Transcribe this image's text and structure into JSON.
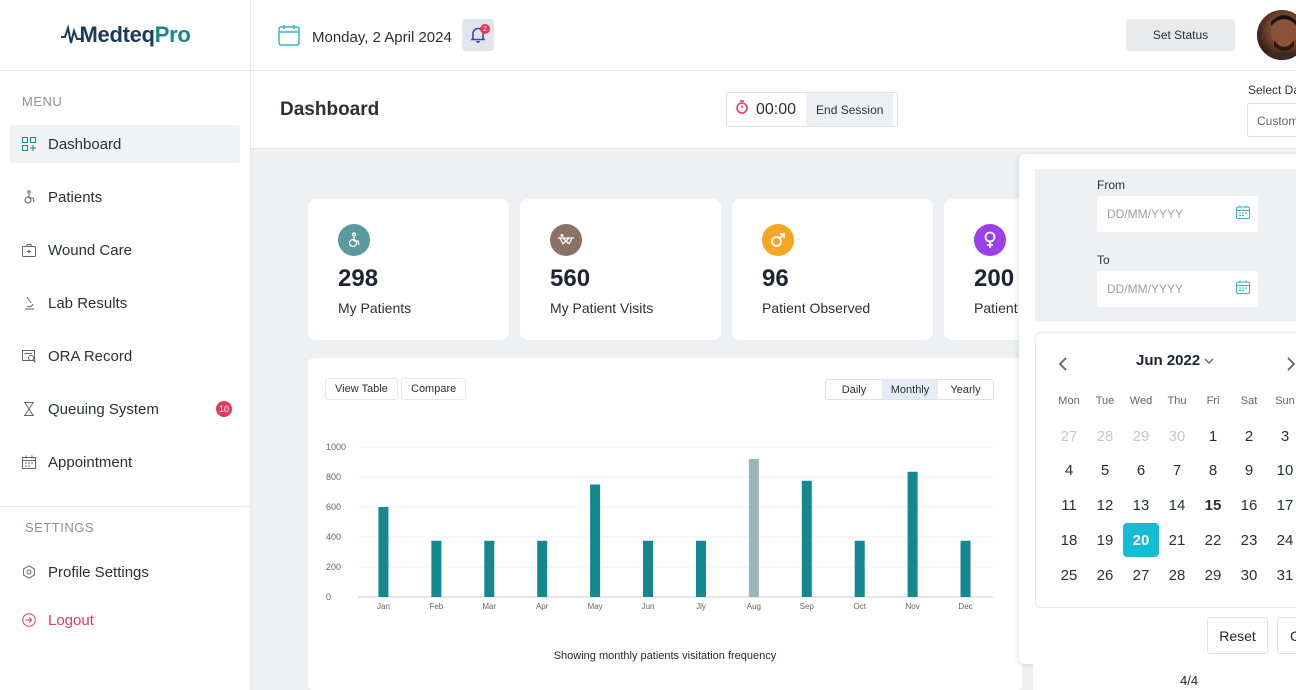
{
  "app": {
    "logo_main": "Medteq",
    "logo_accent": "Pro"
  },
  "sidebar": {
    "menu_title": "MENU",
    "items": [
      {
        "label": "Dashboard",
        "icon": "dashboard-icon",
        "active": true
      },
      {
        "label": "Patients",
        "icon": "wheelchair-icon"
      },
      {
        "label": "Wound Care",
        "icon": "first-aid-kit-icon"
      },
      {
        "label": "Lab Results",
        "icon": "microscope-icon"
      },
      {
        "label": "ORA Record",
        "icon": "record-search-icon"
      },
      {
        "label": "Queuing System",
        "icon": "hourglass-icon",
        "badge": "10"
      },
      {
        "label": "Appointment",
        "icon": "calendar-icon"
      }
    ],
    "settings_title": "SETTINGS",
    "profile_settings": "Profile Settings",
    "logout": "Logout"
  },
  "topbar": {
    "date": "Monday, 2 April 2024",
    "notification_count": "2",
    "set_status": "Set Status"
  },
  "header": {
    "title": "Dashboard",
    "timer": "00:00",
    "end_session": "End Session",
    "select_label": "Select Da",
    "select_value": "Custom"
  },
  "stats": [
    {
      "value": "298",
      "label": "My Patients",
      "color": "#5a9a9c",
      "icon": "wheelchair-icon"
    },
    {
      "value": "560",
      "label": "My Patient Visits",
      "color": "#8a7268",
      "icon": "stretcher-icon"
    },
    {
      "value": "96",
      "label": "Patient Observed",
      "color": "#f5a623",
      "icon": "male-icon"
    },
    {
      "value": "200",
      "label": "Patient A",
      "color": "#9b3fe8",
      "icon": "female-icon"
    }
  ],
  "chart_panel": {
    "view_table": "View Table",
    "compare": "Compare",
    "periods": [
      "Daily",
      "Monthly",
      "Yearly"
    ],
    "active_period": "Monthly",
    "caption": "Showing monthly patients visitation frequency"
  },
  "chart_data": {
    "type": "bar",
    "categories": [
      "Jan",
      "Feb",
      "Mar",
      "Apr",
      "May",
      "Jun",
      "Jly",
      "Aug",
      "Sep",
      "Oct",
      "Nov",
      "Dec"
    ],
    "values": [
      600,
      375,
      375,
      375,
      750,
      375,
      375,
      920,
      775,
      375,
      835,
      375
    ],
    "highlight_index": 7,
    "ylim": [
      0,
      1000
    ],
    "yticks": [
      "0",
      "200",
      "400",
      "600",
      "800",
      "1000"
    ],
    "bar_color": "#14888f",
    "highlight_color": "#9cb4ba"
  },
  "datepicker": {
    "from_label": "From",
    "to_label": "To",
    "placeholder": "DD/MM/YYYY",
    "month_title": "Jun 2022",
    "weekdays": [
      "Mon",
      "Tue",
      "Wed",
      "Thu",
      "Fri",
      "Sat",
      "Sun"
    ],
    "weeks": [
      [
        {
          "d": "27",
          "m": true
        },
        {
          "d": "28",
          "m": true
        },
        {
          "d": "29",
          "m": true
        },
        {
          "d": "30",
          "m": true
        },
        {
          "d": "1"
        },
        {
          "d": "2"
        },
        {
          "d": "3"
        }
      ],
      [
        {
          "d": "4"
        },
        {
          "d": "5"
        },
        {
          "d": "6"
        },
        {
          "d": "7"
        },
        {
          "d": "8"
        },
        {
          "d": "9"
        },
        {
          "d": "10"
        }
      ],
      [
        {
          "d": "11"
        },
        {
          "d": "12"
        },
        {
          "d": "13"
        },
        {
          "d": "14"
        },
        {
          "d": "15",
          "today": true
        },
        {
          "d": "16"
        },
        {
          "d": "17"
        }
      ],
      [
        {
          "d": "18"
        },
        {
          "d": "19"
        },
        {
          "d": "20",
          "selected": true
        },
        {
          "d": "21"
        },
        {
          "d": "22"
        },
        {
          "d": "23"
        },
        {
          "d": "24"
        }
      ],
      [
        {
          "d": "25"
        },
        {
          "d": "26"
        },
        {
          "d": "27"
        },
        {
          "d": "28"
        },
        {
          "d": "29"
        },
        {
          "d": "30"
        },
        {
          "d": "31"
        }
      ]
    ],
    "reset": "Reset",
    "apply": "C"
  },
  "pager": "4/4"
}
